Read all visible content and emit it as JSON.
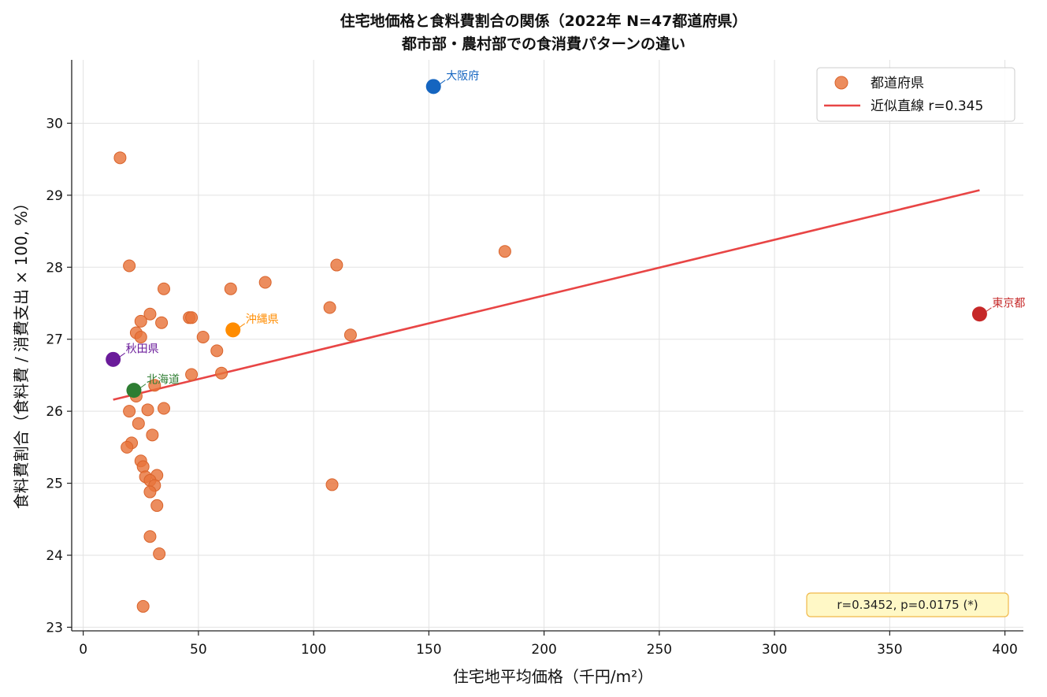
{
  "chart_data": {
    "type": "scatter",
    "title_line1": "住宅地価格と食料費割合の関係（2022年 N=47都道府県）",
    "title_line2": "都市部・農村部での食消費パターンの違い",
    "xlabel": "住宅地平均価格（千円/m²）",
    "ylabel": "食料費割合（食料費 / 消費支出 × 100, %）",
    "xlim": [
      -5,
      408
    ],
    "ylim": [
      22.95,
      30.88
    ],
    "xticks": [
      0,
      50,
      100,
      150,
      200,
      250,
      300,
      350,
      400
    ],
    "yticks": [
      23,
      24,
      25,
      26,
      27,
      28,
      29,
      30
    ],
    "grid": true,
    "legend_position": "top-right",
    "series": [
      {
        "name": "都道府県",
        "color": "#e8743b",
        "points": [
          [
            16,
            29.52
          ],
          [
            20,
            28.02
          ],
          [
            35,
            27.7
          ],
          [
            64,
            27.7
          ],
          [
            79,
            27.79
          ],
          [
            110,
            28.03
          ],
          [
            183,
            28.22
          ],
          [
            29,
            27.35
          ],
          [
            25,
            27.25
          ],
          [
            34,
            27.23
          ],
          [
            46,
            27.3
          ],
          [
            47,
            27.3
          ],
          [
            23,
            27.09
          ],
          [
            25,
            27.03
          ],
          [
            52,
            27.03
          ],
          [
            58,
            26.84
          ],
          [
            107,
            27.44
          ],
          [
            116,
            27.06
          ],
          [
            47,
            26.51
          ],
          [
            60,
            26.53
          ],
          [
            31,
            26.36
          ],
          [
            23,
            26.21
          ],
          [
            28,
            26.02
          ],
          [
            35,
            26.04
          ],
          [
            20,
            26.0
          ],
          [
            24,
            25.83
          ],
          [
            30,
            25.67
          ],
          [
            21,
            25.56
          ],
          [
            19,
            25.5
          ],
          [
            25,
            25.31
          ],
          [
            26,
            25.23
          ],
          [
            27,
            25.09
          ],
          [
            32,
            25.11
          ],
          [
            29,
            25.04
          ],
          [
            31,
            24.97
          ],
          [
            29,
            24.88
          ],
          [
            108,
            24.98
          ],
          [
            32,
            24.69
          ],
          [
            29,
            24.26
          ],
          [
            33,
            24.02
          ],
          [
            26,
            23.29
          ]
        ]
      },
      {
        "name": "近似直線 r=0.345",
        "color": "#e84545",
        "type": "line",
        "x": [
          13,
          389
        ],
        "y": [
          26.16,
          29.07
        ]
      }
    ],
    "highlights": [
      {
        "label": "大阪府",
        "x": 152,
        "y": 30.51,
        "color": "#1565c0"
      },
      {
        "label": "東京都",
        "x": 389,
        "y": 27.35,
        "color": "#c62828"
      },
      {
        "label": "沖縄県",
        "x": 65,
        "y": 27.13,
        "color": "#ff8c00"
      },
      {
        "label": "秋田県",
        "x": 13,
        "y": 26.72,
        "color": "#6a1b9a"
      },
      {
        "label": "北海道",
        "x": 22,
        "y": 26.29,
        "color": "#2e7d32"
      }
    ],
    "stats_box": "r=0.3452,  p=0.0175  (*)"
  }
}
